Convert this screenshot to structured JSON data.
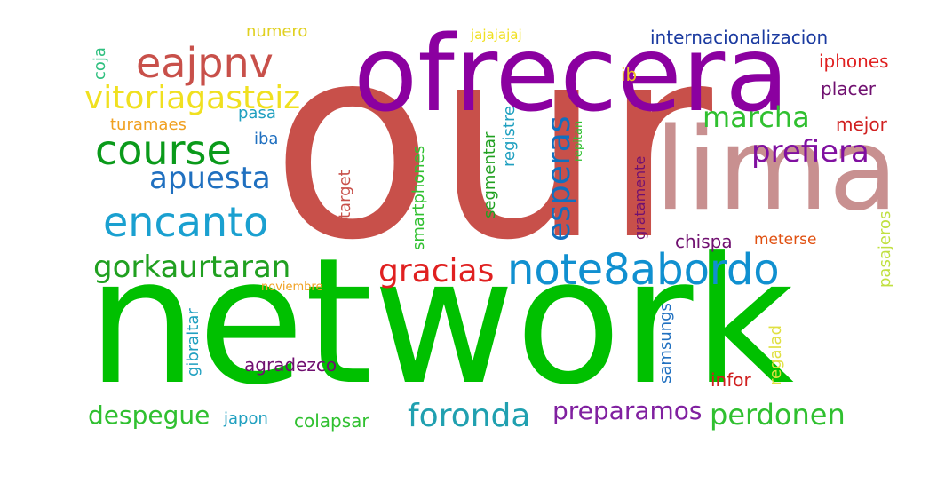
{
  "words": [
    {
      "text": "our",
      "color": "#c8504a",
      "vertical": false
    },
    {
      "text": "network",
      "color": "#00c000",
      "vertical": false
    },
    {
      "text": "ofrecera",
      "color": "#8b00a0",
      "vertical": false
    },
    {
      "text": "lima",
      "color": "#c89090",
      "vertical": false
    },
    {
      "text": "eajpnv",
      "color": "#c8504a",
      "vertical": false
    },
    {
      "text": "course",
      "color": "#0a9a1a",
      "vertical": false
    },
    {
      "text": "encanto",
      "color": "#1aa0d0",
      "vertical": false
    },
    {
      "text": "vitoriagasteiz",
      "color": "#f0e020",
      "vertical": false
    },
    {
      "text": "apuesta",
      "color": "#2070c0",
      "vertical": false
    },
    {
      "text": "gorkaurtaran",
      "color": "#20a020",
      "vertical": false
    },
    {
      "text": "note8abordo",
      "color": "#1090d0",
      "vertical": false
    },
    {
      "text": "gracias",
      "color": "#e02020",
      "vertical": false
    },
    {
      "text": "esperas",
      "color": "#1070c0",
      "vertical": true
    },
    {
      "text": "marcha",
      "color": "#30c030",
      "vertical": false
    },
    {
      "text": "prefiera",
      "color": "#8010a0",
      "vertical": false
    },
    {
      "text": "foronda",
      "color": "#20a0b0",
      "vertical": false
    },
    {
      "text": "despegue",
      "color": "#30c030",
      "vertical": false
    },
    {
      "text": "preparamos",
      "color": "#8020a0",
      "vertical": false
    },
    {
      "text": "perdonen",
      "color": "#30c030",
      "vertical": false
    },
    {
      "text": "internacionalizacion",
      "color": "#1a3aa0",
      "vertical": false
    },
    {
      "text": "iphones",
      "color": "#e02020",
      "vertical": false
    },
    {
      "text": "placer",
      "color": "#701070",
      "vertical": false
    },
    {
      "text": "mejor",
      "color": "#d02020",
      "vertical": false
    },
    {
      "text": "chispa",
      "color": "#701070",
      "vertical": false
    },
    {
      "text": "meterse",
      "color": "#e05010",
      "vertical": false
    },
    {
      "text": "numero",
      "color": "#e0d020",
      "vertical": false
    },
    {
      "text": "jajajajaj",
      "color": "#f0e020",
      "vertical": false
    },
    {
      "text": "ib",
      "color": "#f0c020",
      "vertical": false
    },
    {
      "text": "coja",
      "color": "#30c080",
      "vertical": true
    },
    {
      "text": "turamaes",
      "color": "#f0a020",
      "vertical": false
    },
    {
      "text": "pasa",
      "color": "#20a0c0",
      "vertical": false
    },
    {
      "text": "iba",
      "color": "#2070c0",
      "vertical": false
    },
    {
      "text": "registre",
      "color": "#20a0c0",
      "vertical": true
    },
    {
      "text": "smartphones",
      "color": "#30c030",
      "vertical": true
    },
    {
      "text": "segmentar",
      "color": "#20a020",
      "vertical": true
    },
    {
      "text": "target",
      "color": "#c8504a",
      "vertical": true
    },
    {
      "text": "repitan",
      "color": "#30c030",
      "vertical": true
    },
    {
      "text": "gratamente",
      "color": "#701070",
      "vertical": true
    },
    {
      "text": "pasajeros",
      "color": "#c0e040",
      "vertical": true
    },
    {
      "text": "noviembre",
      "color": "#f0a020",
      "vertical": false
    },
    {
      "text": "gibraltar",
      "color": "#20a0c0",
      "vertical": true
    },
    {
      "text": "agradezco",
      "color": "#701070",
      "vertical": false
    },
    {
      "text": "regalad",
      "color": "#e0e040",
      "vertical": true
    },
    {
      "text": "samsungs",
      "color": "#2070c0",
      "vertical": true
    },
    {
      "text": "infor",
      "color": "#d02020",
      "vertical": false
    },
    {
      "text": "japon",
      "color": "#20a0c0",
      "vertical": false
    },
    {
      "text": "colapsar",
      "color": "#30c030",
      "vertical": false
    }
  ]
}
